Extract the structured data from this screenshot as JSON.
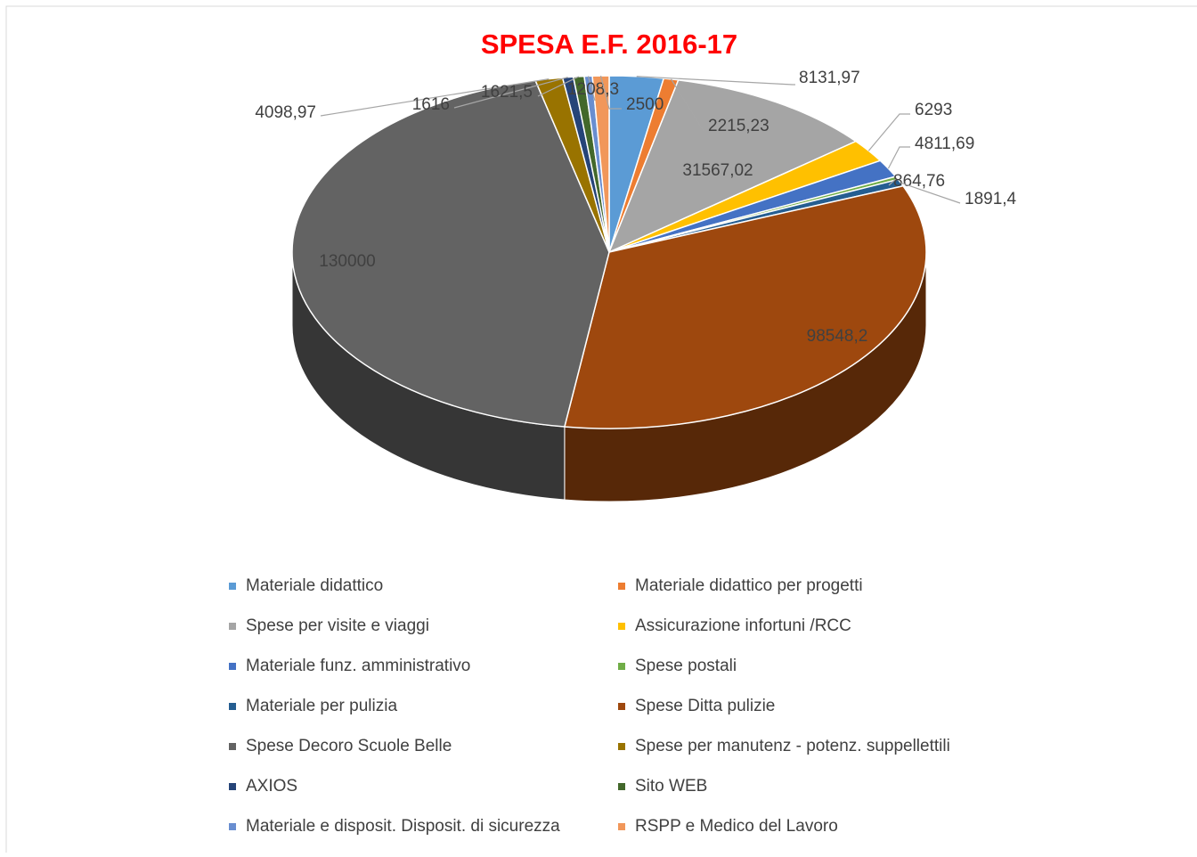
{
  "chart_data": {
    "type": "pie3d",
    "title": "SPESA E.F. 2016-17",
    "categories": [
      "Materiale didattico",
      "Materiale didattico per progetti",
      "Spese per visite e viaggi",
      "Assicurazione infortuni /RCC",
      "Materiale funz. amministrativo",
      "Spese postali",
      "Materiale per pulizia",
      "Spese Ditta pulizie",
      "Spese Decoro Scuole Belle",
      "Spese per manutenz - potenz. suppellettili",
      "AXIOS",
      "Sito WEB",
      "Materiale e disposit. Disposit. di sicurezza",
      "RSPP e Medico del Lavoro"
    ],
    "values": [
      8131.97,
      2215.23,
      31567.02,
      6293,
      4811.69,
      864.76,
      1891.4,
      98548.2,
      130000,
      4098.97,
      1616,
      1621.5,
      1208.3,
      2500
    ],
    "value_labels": [
      "8131,97",
      "2215,23",
      "31567,02",
      "6293",
      "4811,69",
      "864,76",
      "1891,4",
      "98548,2",
      "130000",
      "4098,97",
      "1616",
      "1621,5",
      "1208,3",
      "2500"
    ],
    "colors": [
      "#5b9bd5",
      "#ed7d31",
      "#a5a5a5",
      "#ffc000",
      "#4472c4",
      "#70ad47",
      "#255e91",
      "#9e480e",
      "#636363",
      "#997300",
      "#264478",
      "#43682b",
      "#698ed0",
      "#f1975a"
    ],
    "legend": "bottom"
  }
}
